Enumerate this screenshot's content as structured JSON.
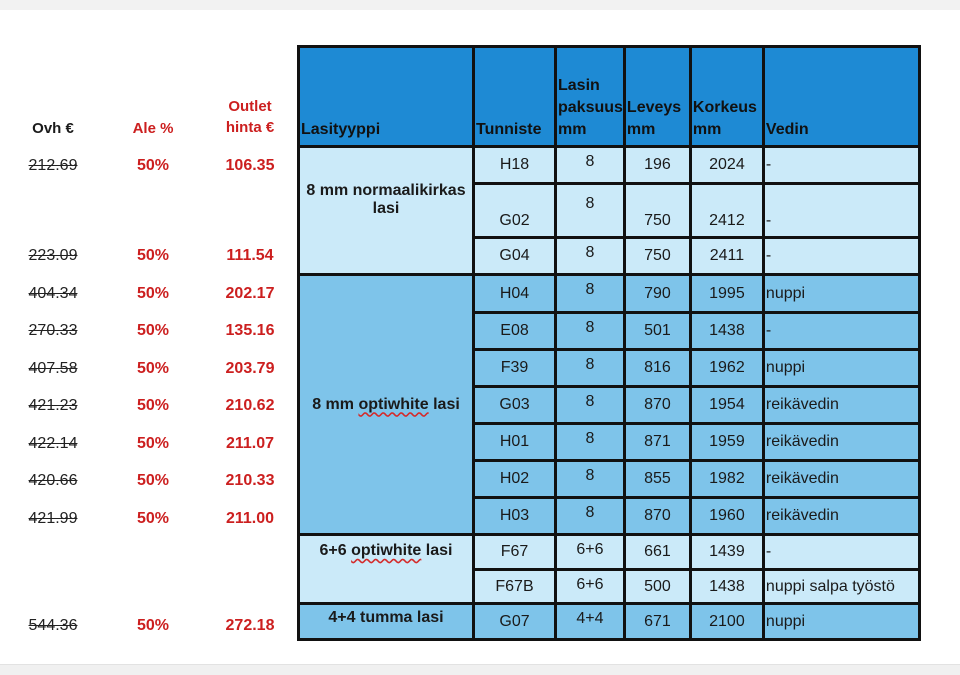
{
  "left_headers": {
    "ovh": "Ovh €",
    "ale": "Ale %",
    "outlet_line1": "Outlet",
    "outlet_line2": "hinta €"
  },
  "table_headers": {
    "lasityyppi": "Lasityyppi",
    "tunniste": "Tunniste",
    "paksuus_line1": "Lasin",
    "paksuus_line2": "paksuus",
    "paksuus_line3": "mm",
    "leveys_line1": "Leveys",
    "leveys_line2": "mm",
    "korkeus_line1": "Korkeus",
    "korkeus_line2": "mm",
    "vedin": "Vedin"
  },
  "groups": {
    "g1_line1": "8 mm normaalikirkas",
    "g1_line2": "lasi",
    "g2_prefix": "8 mm ",
    "g2_word": "optiwhite",
    "g2_suffix": " lasi",
    "g3_prefix": "6+6 ",
    "g3_word": "optiwhite",
    "g3_suffix": " lasi",
    "g4": "4+4 tumma lasi"
  },
  "rows": [
    {
      "ovh": "212.69",
      "ale": "50%",
      "outlet": "106.35",
      "id": "H18",
      "thick": "8",
      "width": "196",
      "height": "2024",
      "handle": "-"
    },
    {
      "ovh": "",
      "ale": "",
      "outlet": "",
      "id": "G02",
      "thick": "8",
      "width": "750",
      "height": "2412",
      "handle": "-"
    },
    {
      "ovh": "223.09",
      "ale": "50%",
      "outlet": "111.54",
      "id": "G04",
      "thick": "8",
      "width": "750",
      "height": "2411",
      "handle": "-"
    },
    {
      "ovh": "404.34",
      "ale": "50%",
      "outlet": "202.17",
      "id": "H04",
      "thick": "8",
      "width": "790",
      "height": "1995",
      "handle": "nuppi"
    },
    {
      "ovh": "270.33",
      "ale": "50%",
      "outlet": "135.16",
      "id": "E08",
      "thick": "8",
      "width": "501",
      "height": "1438",
      "handle": "-"
    },
    {
      "ovh": "407.58",
      "ale": "50%",
      "outlet": "203.79",
      "id": "F39",
      "thick": "8",
      "width": "816",
      "height": "1962",
      "handle": "nuppi"
    },
    {
      "ovh": "421.23",
      "ale": "50%",
      "outlet": "210.62",
      "id": "G03",
      "thick": "8",
      "width": "870",
      "height": "1954",
      "handle": "reikävedin"
    },
    {
      "ovh": "422.14",
      "ale": "50%",
      "outlet": "211.07",
      "id": "H01",
      "thick": "8",
      "width": "871",
      "height": "1959",
      "handle": "reikävedin"
    },
    {
      "ovh": "420.66",
      "ale": "50%",
      "outlet": "210.33",
      "id": "H02",
      "thick": "8",
      "width": "855",
      "height": "1982",
      "handle": "reikävedin"
    },
    {
      "ovh": "421.99",
      "ale": "50%",
      "outlet": "211.00",
      "id": "H03",
      "thick": "8",
      "width": "870",
      "height": "1960",
      "handle": "reikävedin"
    },
    {
      "ovh": "",
      "ale": "",
      "outlet": "",
      "id": "F67",
      "thick": "6+6",
      "width": "661",
      "height": "1439",
      "handle": "-"
    },
    {
      "ovh": "",
      "ale": "",
      "outlet": "",
      "id": "F67B",
      "thick": "6+6",
      "width": "500",
      "height": "1438",
      "handle": "nuppi salpa työstö"
    },
    {
      "ovh": "544.36",
      "ale": "50%",
      "outlet": "272.18",
      "id": "G07",
      "thick": "4+4",
      "width": "671",
      "height": "2100",
      "handle": "nuppi"
    }
  ],
  "colors": {
    "header_blue": "#1e8ad4",
    "light_blue": "#cbeaf9",
    "mid_blue": "#7ec4ea",
    "price_red": "#cc1f1f"
  }
}
